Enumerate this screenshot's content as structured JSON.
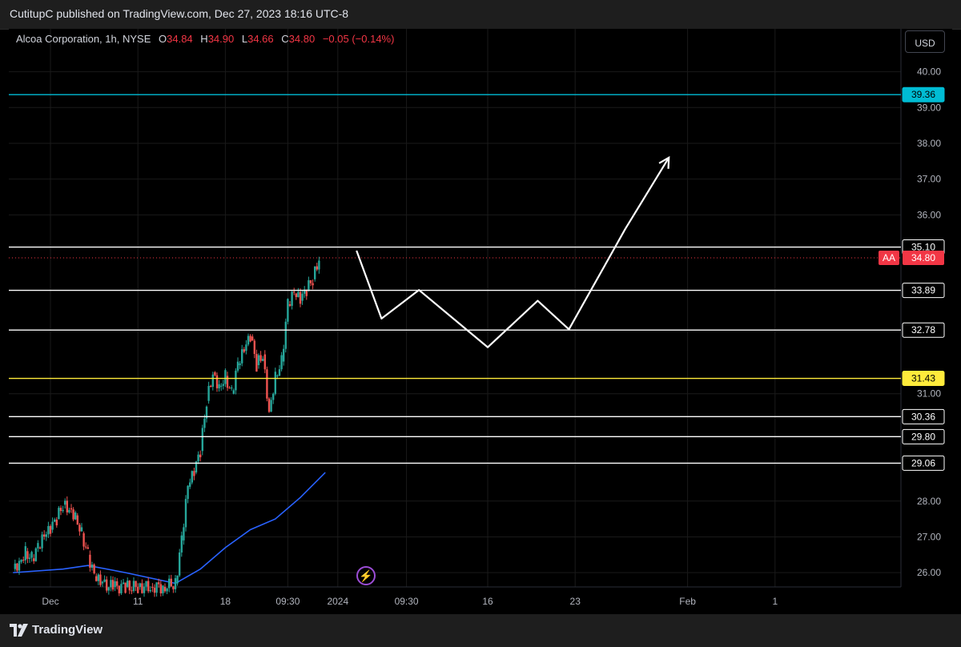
{
  "header": {
    "text": "CutitupC published on TradingView.com, Dec 27, 2023 18:16 UTC-8"
  },
  "legend": {
    "symbol": "Alcoa Corporation, 1h, NYSE",
    "open_label": "O",
    "open": "34.84",
    "high_label": "H",
    "high": "34.90",
    "low_label": "L",
    "low": "34.66",
    "close_label": "C",
    "close": "34.80",
    "change": "−0.05 (−0.14%)"
  },
  "currency_button": "USD",
  "symbol_badge": "AA",
  "footer": {
    "brand": "TradingView"
  },
  "icons": {
    "bolt": "lightning-icon",
    "logo": "tradingview-logo-icon"
  },
  "colors": {
    "up": "#26a69a",
    "down": "#ef5350",
    "ma": "#2962ff",
    "cyan_level": "#00bcd4",
    "yellow_level": "#ffeb3b",
    "white_level": "#ffffff",
    "price_line": "#f23645"
  },
  "chart_data": {
    "type": "candlestick",
    "title": "",
    "y_axis": {
      "range": [
        25.6,
        41.2
      ],
      "ticks": [
        "40.00",
        "39.00",
        "38.00",
        "37.00",
        "36.00",
        "31.00",
        "28.00",
        "27.00",
        "26.00"
      ]
    },
    "x_axis": {
      "ticks": [
        {
          "label": "Dec",
          "x": 0
        },
        {
          "label": "11",
          "x": 7
        },
        {
          "label": "18",
          "x": 14
        },
        {
          "label": "09:30",
          "x": 19
        },
        {
          "label": "2024",
          "x": 23
        },
        {
          "label": "09:30",
          "x": 28.5
        },
        {
          "label": "16",
          "x": 35
        },
        {
          "label": "23",
          "x": 42
        },
        {
          "label": "Feb",
          "x": 51
        },
        {
          "label": "1",
          "x": 58
        }
      ]
    },
    "levels": [
      {
        "price": 39.36,
        "label": "39.36",
        "color": "cyan"
      },
      {
        "price": 35.1,
        "label": "35.10",
        "color": "white"
      },
      {
        "price": 33.89,
        "label": "33.89",
        "color": "white"
      },
      {
        "price": 32.78,
        "label": "32.78",
        "color": "white"
      },
      {
        "price": 31.43,
        "label": "31.43",
        "color": "yellow"
      },
      {
        "price": 30.36,
        "label": "30.36",
        "color": "white"
      },
      {
        "price": 29.8,
        "label": "29.80",
        "color": "white"
      },
      {
        "price": 29.06,
        "label": "29.06",
        "color": "white"
      }
    ],
    "last_price": {
      "price": 34.8,
      "label": "34.80"
    },
    "candles_close": [
      [
        -3,
        26.1
      ],
      [
        -2.5,
        26.3
      ],
      [
        -2,
        26.6
      ],
      [
        -1.5,
        26.4
      ],
      [
        -1,
        26.7
      ],
      [
        -0.5,
        27.0
      ],
      [
        0,
        27.2
      ],
      [
        0.5,
        27.5
      ],
      [
        1,
        27.9
      ],
      [
        1.5,
        27.8
      ],
      [
        2,
        27.6
      ],
      [
        2.5,
        27.1
      ],
      [
        3,
        26.5
      ],
      [
        3.5,
        25.9
      ],
      [
        4,
        25.7
      ],
      [
        5,
        25.6
      ],
      [
        6,
        25.6
      ],
      [
        7,
        25.6
      ],
      [
        8,
        25.6
      ],
      [
        9,
        25.6
      ],
      [
        10,
        25.7
      ],
      [
        10.5,
        26.9
      ],
      [
        11,
        28.4
      ],
      [
        11.5,
        28.8
      ],
      [
        12,
        29.4
      ],
      [
        12.5,
        30.8
      ],
      [
        13,
        31.6
      ],
      [
        13.5,
        31.2
      ],
      [
        14,
        31.5
      ],
      [
        14.5,
        31.0
      ],
      [
        15,
        31.8
      ],
      [
        15.5,
        32.2
      ],
      [
        16,
        32.6
      ],
      [
        16.5,
        31.8
      ],
      [
        17,
        32.1
      ],
      [
        17.5,
        30.5
      ],
      [
        18,
        31.5
      ],
      [
        18.5,
        31.9
      ],
      [
        19,
        33.5
      ],
      [
        19.5,
        33.8
      ],
      [
        20,
        33.6
      ],
      [
        20.5,
        33.9
      ],
      [
        21,
        34.2
      ],
      [
        21.5,
        34.8
      ]
    ],
    "moving_average": [
      [
        -3,
        26.0
      ],
      [
        1,
        26.1
      ],
      [
        3,
        26.2
      ],
      [
        6,
        26.0
      ],
      [
        10,
        25.7
      ],
      [
        12,
        26.1
      ],
      [
        14,
        26.7
      ],
      [
        16,
        27.2
      ],
      [
        18,
        27.5
      ],
      [
        20,
        28.1
      ],
      [
        22,
        28.8
      ]
    ],
    "projection_path": [
      [
        24.5,
        35.0
      ],
      [
        26.5,
        33.1
      ],
      [
        29.5,
        33.9
      ],
      [
        35,
        32.3
      ],
      [
        39,
        33.6
      ],
      [
        41.5,
        32.8
      ],
      [
        46,
        35.6
      ],
      [
        49.5,
        37.6
      ]
    ]
  }
}
